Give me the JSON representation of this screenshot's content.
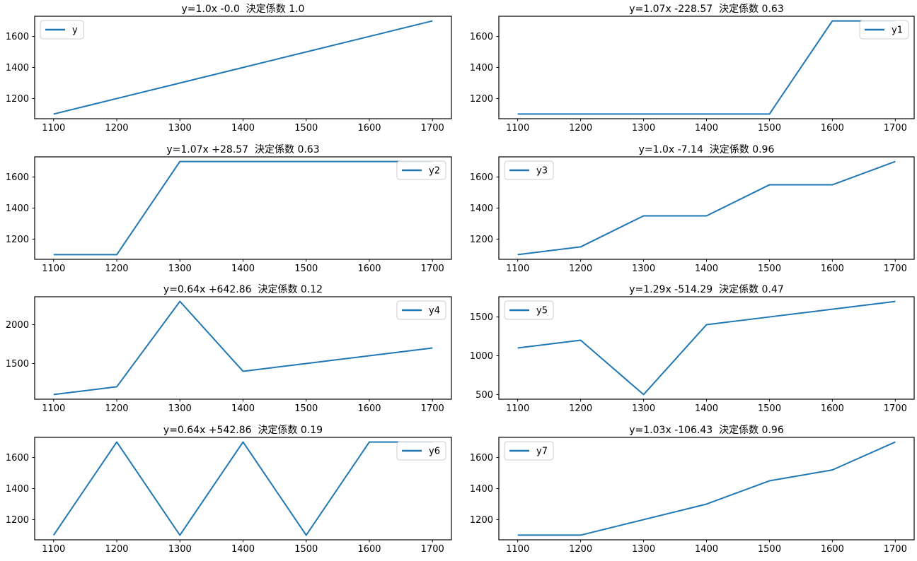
{
  "figure": {
    "background": "#ffffff",
    "line_color": "#1f77b4",
    "spine_color": "#000000",
    "tick_label_color": "#000000",
    "legend_border_color": "#cccccc",
    "legend_fill": "rgba(255,255,255,0.85)"
  },
  "chart_data": [
    {
      "type": "line",
      "title": "y=1.0x -0.0  決定係数 1.0",
      "legend_label": "y",
      "legend_position": "upper-left",
      "x": [
        1100,
        1200,
        1300,
        1400,
        1500,
        1600,
        1700
      ],
      "values": [
        1100,
        1200,
        1300,
        1400,
        1500,
        1600,
        1700
      ],
      "xlim": [
        1070,
        1730
      ],
      "ylim": [
        1070,
        1730
      ],
      "xticks": [
        1100,
        1200,
        1300,
        1400,
        1500,
        1600,
        1700
      ],
      "yticks": [
        1200,
        1400,
        1600
      ],
      "grid": false
    },
    {
      "type": "line",
      "title": "y=1.07x -228.57  決定係数 0.63",
      "legend_label": "y1",
      "legend_position": "upper-right",
      "x": [
        1100,
        1200,
        1300,
        1400,
        1500,
        1600,
        1700
      ],
      "values": [
        1100,
        1100,
        1100,
        1100,
        1100,
        1700,
        1700
      ],
      "xlim": [
        1070,
        1730
      ],
      "ylim": [
        1070,
        1730
      ],
      "xticks": [
        1100,
        1200,
        1300,
        1400,
        1500,
        1600,
        1700
      ],
      "yticks": [
        1200,
        1400,
        1600
      ],
      "grid": false
    },
    {
      "type": "line",
      "title": "y=1.07x +28.57  決定係数 0.63",
      "legend_label": "y2",
      "legend_position": "upper-right",
      "x": [
        1100,
        1200,
        1300,
        1400,
        1500,
        1600,
        1700
      ],
      "values": [
        1100,
        1100,
        1700,
        1700,
        1700,
        1700,
        1700
      ],
      "xlim": [
        1070,
        1730
      ],
      "ylim": [
        1070,
        1730
      ],
      "xticks": [
        1100,
        1200,
        1300,
        1400,
        1500,
        1600,
        1700
      ],
      "yticks": [
        1200,
        1400,
        1600
      ],
      "grid": false
    },
    {
      "type": "line",
      "title": "y=1.0x -7.14  決定係数 0.96",
      "legend_label": "y3",
      "legend_position": "upper-left",
      "x": [
        1100,
        1200,
        1300,
        1400,
        1500,
        1600,
        1700
      ],
      "values": [
        1100,
        1150,
        1350,
        1350,
        1550,
        1550,
        1700
      ],
      "xlim": [
        1070,
        1730
      ],
      "ylim": [
        1070,
        1730
      ],
      "xticks": [
        1100,
        1200,
        1300,
        1400,
        1500,
        1600,
        1700
      ],
      "yticks": [
        1200,
        1400,
        1600
      ],
      "grid": false
    },
    {
      "type": "line",
      "title": "y=0.64x +642.86  決定係数 0.12",
      "legend_label": "y4",
      "legend_position": "upper-right",
      "x": [
        1100,
        1200,
        1300,
        1400,
        1500,
        1600,
        1700
      ],
      "values": [
        1100,
        1200,
        2300,
        1400,
        1500,
        1600,
        1700
      ],
      "xlim": [
        1070,
        1730
      ],
      "ylim": [
        1040,
        2360
      ],
      "xticks": [
        1100,
        1200,
        1300,
        1400,
        1500,
        1600,
        1700
      ],
      "yticks": [
        1500,
        2000
      ],
      "grid": false
    },
    {
      "type": "line",
      "title": "y=1.29x -514.29  決定係数 0.47",
      "legend_label": "y5",
      "legend_position": "upper-left",
      "x": [
        1100,
        1200,
        1300,
        1400,
        1500,
        1600,
        1700
      ],
      "values": [
        1100,
        1200,
        500,
        1400,
        1500,
        1600,
        1700
      ],
      "xlim": [
        1070,
        1730
      ],
      "ylim": [
        440,
        1760
      ],
      "xticks": [
        1100,
        1200,
        1300,
        1400,
        1500,
        1600,
        1700
      ],
      "yticks": [
        500,
        1000,
        1500
      ],
      "grid": false
    },
    {
      "type": "line",
      "title": "y=0.64x +542.86  決定係数 0.19",
      "legend_label": "y6",
      "legend_position": "upper-right",
      "x": [
        1100,
        1200,
        1300,
        1400,
        1500,
        1600,
        1700
      ],
      "values": [
        1100,
        1700,
        1100,
        1700,
        1100,
        1700,
        1700
      ],
      "xlim": [
        1070,
        1730
      ],
      "ylim": [
        1070,
        1730
      ],
      "xticks": [
        1100,
        1200,
        1300,
        1400,
        1500,
        1600,
        1700
      ],
      "yticks": [
        1200,
        1400,
        1600
      ],
      "grid": false
    },
    {
      "type": "line",
      "title": "y=1.03x -106.43  決定係数 0.96",
      "legend_label": "y7",
      "legend_position": "upper-left",
      "x": [
        1100,
        1200,
        1300,
        1400,
        1500,
        1600,
        1700
      ],
      "values": [
        1100,
        1100,
        1200,
        1300,
        1450,
        1520,
        1700
      ],
      "xlim": [
        1070,
        1730
      ],
      "ylim": [
        1070,
        1730
      ],
      "xticks": [
        1100,
        1200,
        1300,
        1400,
        1500,
        1600,
        1700
      ],
      "yticks": [
        1200,
        1400,
        1600
      ],
      "grid": false
    }
  ]
}
